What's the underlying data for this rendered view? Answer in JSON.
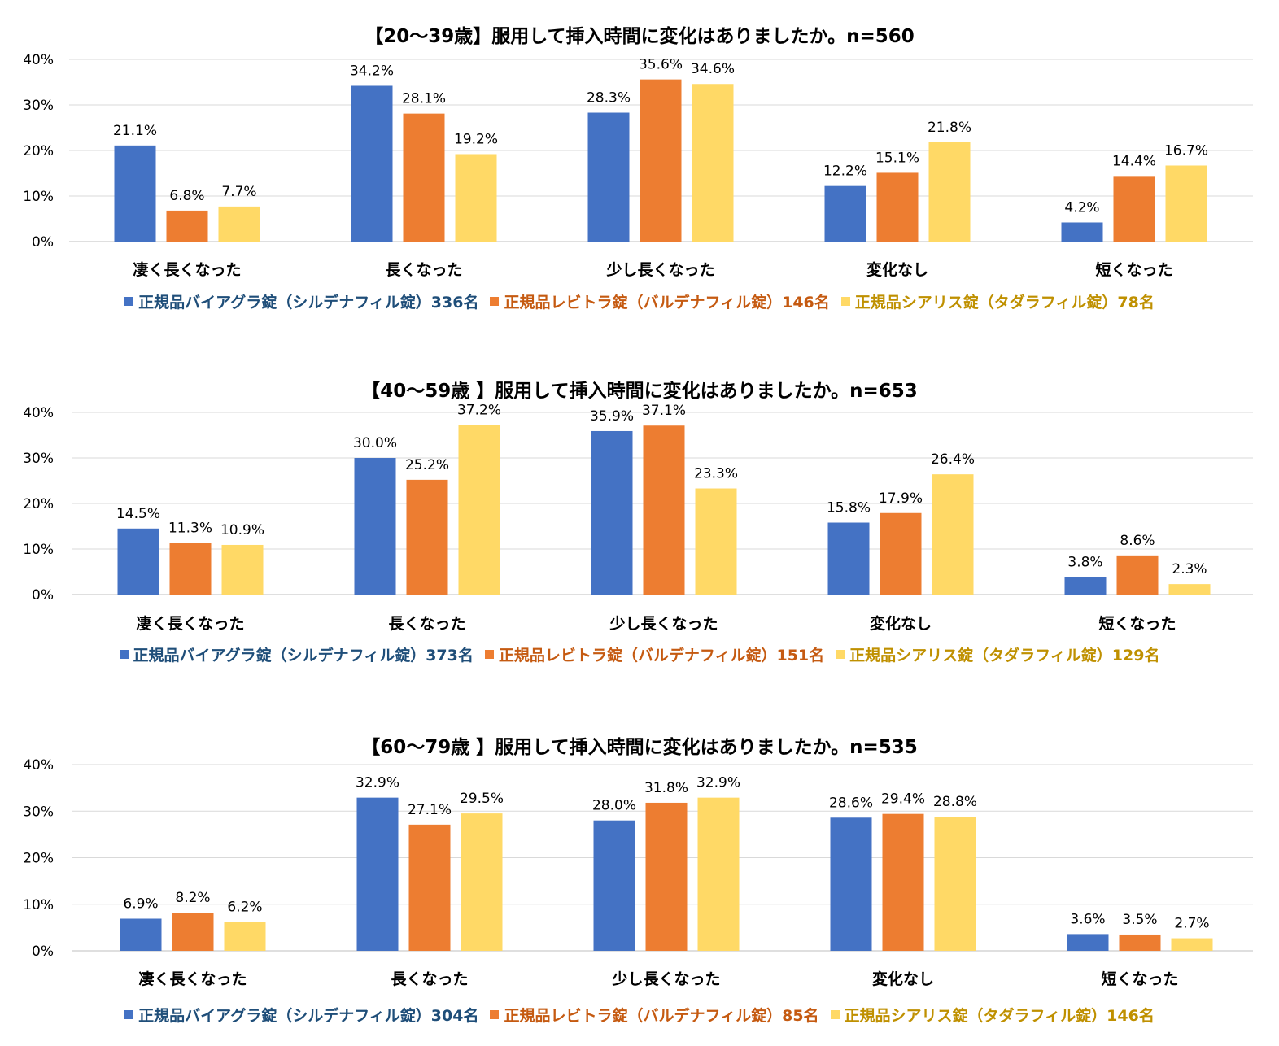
{
  "colors": {
    "blue": "#4472c4",
    "orange": "#ed7d31",
    "yellow": "#ffd966",
    "blue_text": "#1f4e79",
    "orange_text": "#c55a11",
    "yellow_text": "#bf9000",
    "grid": "#d9d9d9"
  },
  "chart_data": [
    {
      "type": "bar",
      "title": "【20〜39歳】服用して挿入時間に変化はありましたか。n=560",
      "categories": [
        "凄く長くなった",
        "長くなった",
        "少し長くなった",
        "変化なし",
        "短くなった"
      ],
      "yticks": [
        "0%",
        "10%",
        "20%",
        "30%",
        "40%"
      ],
      "ylim": [
        0,
        40
      ],
      "grid": true,
      "legend_position": "bottom",
      "series": [
        {
          "name": "正規品バイアグラ錠（シルデナフィル錠）336名",
          "values": [
            21.1,
            34.2,
            28.3,
            12.2,
            4.2
          ]
        },
        {
          "name": "正規品レビトラ錠（バルデナフィル錠）146名",
          "values": [
            6.8,
            28.1,
            35.6,
            15.1,
            14.4
          ]
        },
        {
          "name": "正規品シアリス錠（タダラフィル錠）78名",
          "values": [
            7.7,
            19.2,
            34.6,
            21.8,
            16.7
          ]
        }
      ]
    },
    {
      "type": "bar",
      "title": "【40〜59歳 】服用して挿入時間に変化はありましたか。n=653",
      "categories": [
        "凄く長くなった",
        "長くなった",
        "少し長くなった",
        "変化なし",
        "短くなった"
      ],
      "yticks": [
        "0%",
        "10%",
        "20%",
        "30%",
        "40%"
      ],
      "ylim": [
        0,
        40
      ],
      "grid": true,
      "legend_position": "bottom",
      "series": [
        {
          "name": "正規品バイアグラ錠（シルデナフィル錠）373名",
          "values": [
            14.5,
            30.0,
            35.9,
            15.8,
            3.8
          ]
        },
        {
          "name": "正規品レビトラ錠（バルデナフィル錠）151名",
          "values": [
            11.3,
            25.2,
            37.1,
            17.9,
            8.6
          ]
        },
        {
          "name": "正規品シアリス錠（タダラフィル錠）129名",
          "values": [
            10.9,
            37.2,
            23.3,
            26.4,
            2.3
          ]
        }
      ]
    },
    {
      "type": "bar",
      "title": "【60〜79歳 】服用して挿入時間に変化はありましたか。n=535",
      "categories": [
        "凄く長くなった",
        "長くなった",
        "少し長くなった",
        "変化なし",
        "短くなった"
      ],
      "yticks": [
        "0%",
        "10%",
        "20%",
        "30%",
        "40%"
      ],
      "ylim": [
        0,
        40
      ],
      "grid": true,
      "legend_position": "bottom",
      "series": [
        {
          "name": "正規品バイアグラ錠（シルデナフィル錠）304名",
          "values": [
            6.9,
            32.9,
            28.0,
            28.6,
            3.6
          ]
        },
        {
          "name": "正規品レビトラ錠（バルデナフィル錠）85名",
          "values": [
            8.2,
            27.1,
            31.8,
            29.4,
            3.5
          ]
        },
        {
          "name": "正規品シアリス錠（タダラフィル錠）146名",
          "values": [
            6.2,
            29.5,
            32.9,
            28.8,
            2.7
          ]
        }
      ]
    }
  ]
}
